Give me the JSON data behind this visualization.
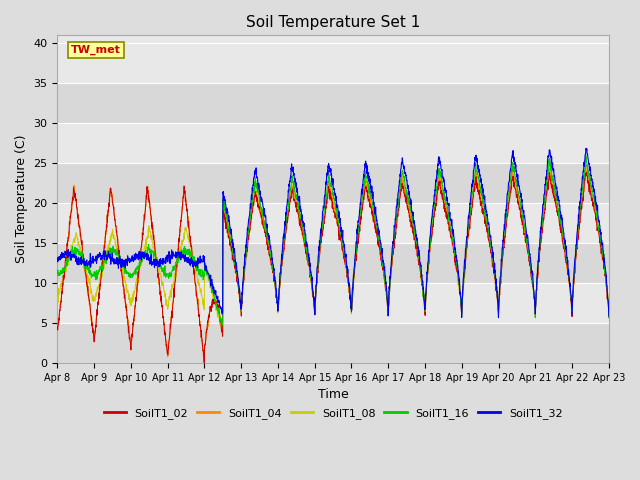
{
  "title": "Soil Temperature Set 1",
  "xlabel": "Time",
  "ylabel": "Soil Temperature (C)",
  "ylim": [
    0,
    41
  ],
  "background_color": "#dddddd",
  "plot_bg_color": "#e8e8e8",
  "series": [
    "SoilT1_02",
    "SoilT1_04",
    "SoilT1_08",
    "SoilT1_16",
    "SoilT1_32"
  ],
  "colors": [
    "#cc0000",
    "#ff8800",
    "#cccc00",
    "#00cc00",
    "#0000ee"
  ],
  "annotation": "TW_met",
  "annotation_bg": "#ffff99",
  "annotation_border": "#888800",
  "x_tick_labels": [
    "Apr 8",
    "Apr 9",
    "Apr 10",
    "Apr 11",
    "Apr 12",
    "Apr 13",
    "Apr 14",
    "Apr 15",
    "Apr 16",
    "Apr 17",
    "Apr 18",
    "Apr 19",
    "Apr 20",
    "Apr 21",
    "Apr 22",
    "Apr 23"
  ],
  "yticks": [
    0,
    5,
    10,
    15,
    20,
    25,
    30,
    35,
    40
  ],
  "grid_colors": [
    "#d0d0d0",
    "#c0c0c0"
  ]
}
